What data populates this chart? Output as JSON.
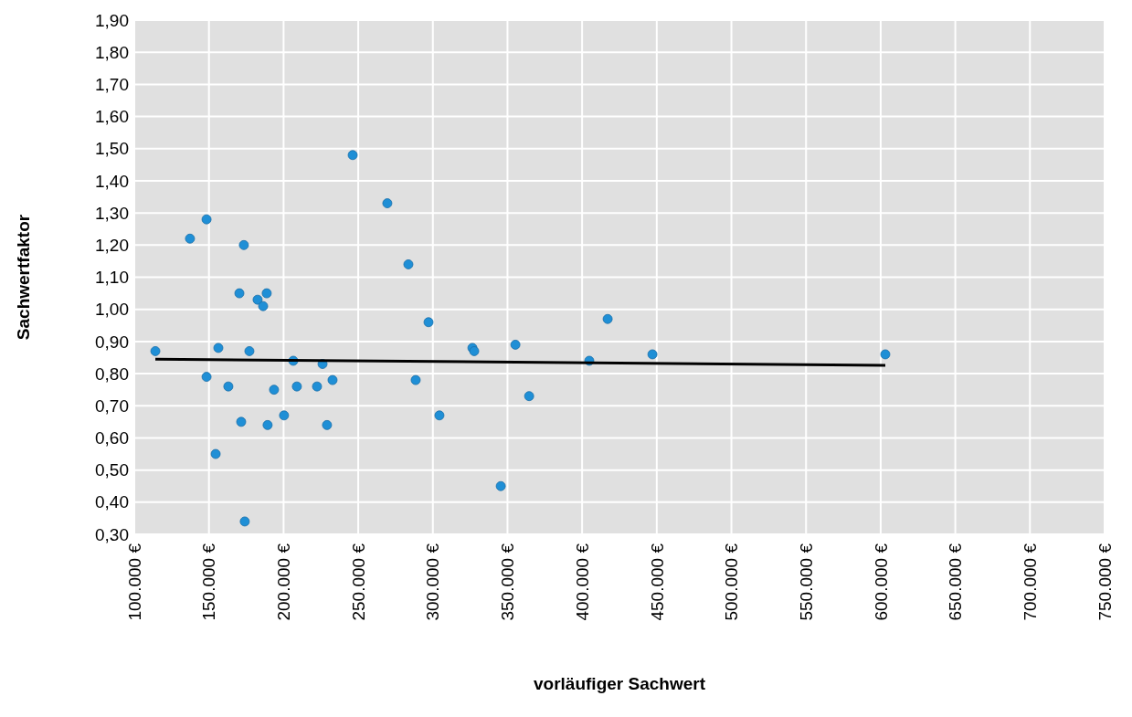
{
  "chart_data": {
    "type": "scatter",
    "xlabel": "vorläufiger Sachwert",
    "ylabel": "Sachwertfaktor",
    "xlim": [
      100000,
      750000
    ],
    "xticks": [
      {
        "value": 100000,
        "label": "100.000 €"
      },
      {
        "value": 150000,
        "label": "150.000 €"
      },
      {
        "value": 200000,
        "label": "200.000 €"
      },
      {
        "value": 250000,
        "label": "250.000 €"
      },
      {
        "value": 300000,
        "label": "300.000 €"
      },
      {
        "value": 350000,
        "label": "350.000 €"
      },
      {
        "value": 400000,
        "label": "400.000 €"
      },
      {
        "value": 450000,
        "label": "450.000 €"
      },
      {
        "value": 500000,
        "label": "500.000 €"
      },
      {
        "value": 550000,
        "label": "550.000 €"
      },
      {
        "value": 600000,
        "label": "600.000 €"
      },
      {
        "value": 650000,
        "label": "650.000 €"
      },
      {
        "value": 700000,
        "label": "700.000 €"
      },
      {
        "value": 750000,
        "label": "750.000 €"
      }
    ],
    "ylim": [
      0.3,
      1.9
    ],
    "yticks": [
      {
        "value": 0.3,
        "label": "0,30"
      },
      {
        "value": 0.4,
        "label": "0,40"
      },
      {
        "value": 0.5,
        "label": "0,50"
      },
      {
        "value": 0.6,
        "label": "0,60"
      },
      {
        "value": 0.7,
        "label": "0,70"
      },
      {
        "value": 0.8,
        "label": "0,80"
      },
      {
        "value": 0.9,
        "label": "0,90"
      },
      {
        "value": 1.0,
        "label": "1,00"
      },
      {
        "value": 1.1,
        "label": "1,10"
      },
      {
        "value": 1.2,
        "label": "1,20"
      },
      {
        "value": 1.3,
        "label": "1,30"
      },
      {
        "value": 1.4,
        "label": "1,40"
      },
      {
        "value": 1.5,
        "label": "1,50"
      },
      {
        "value": 1.6,
        "label": "1,60"
      },
      {
        "value": 1.7,
        "label": "1,70"
      },
      {
        "value": 1.8,
        "label": "1,80"
      },
      {
        "value": 1.9,
        "label": "1,90"
      }
    ],
    "grid": true,
    "series": [
      {
        "color": "#1f8fd6",
        "marker": "circle",
        "x": [
          114100,
          137300,
          148400,
          148400,
          154500,
          156300,
          163000,
          170400,
          171600,
          173400,
          174000,
          177100,
          182600,
          186300,
          188700,
          189300,
          193600,
          200300,
          206500,
          208900,
          222400,
          226100,
          229100,
          232800,
          246300,
          269500,
          283600,
          288500,
          297100,
          304400,
          326500,
          327700,
          345500,
          355300,
          364500,
          404800,
          417100,
          447100,
          603100
        ],
        "values": [
          0.87,
          1.22,
          1.28,
          0.79,
          0.55,
          0.88,
          0.76,
          1.05,
          0.65,
          1.2,
          0.34,
          0.87,
          1.03,
          1.01,
          1.05,
          0.64,
          0.75,
          0.67,
          0.84,
          0.76,
          0.76,
          0.83,
          0.64,
          0.78,
          1.48,
          1.33,
          1.14,
          0.78,
          0.96,
          0.67,
          0.88,
          0.87,
          0.45,
          0.89,
          0.73,
          0.84,
          0.97,
          0.86,
          0.86
        ]
      },
      {
        "type": "line",
        "color": "#000000",
        "line_style": "solid",
        "x": [
          114100,
          603100
        ],
        "values": [
          0.845,
          0.826
        ]
      }
    ]
  }
}
